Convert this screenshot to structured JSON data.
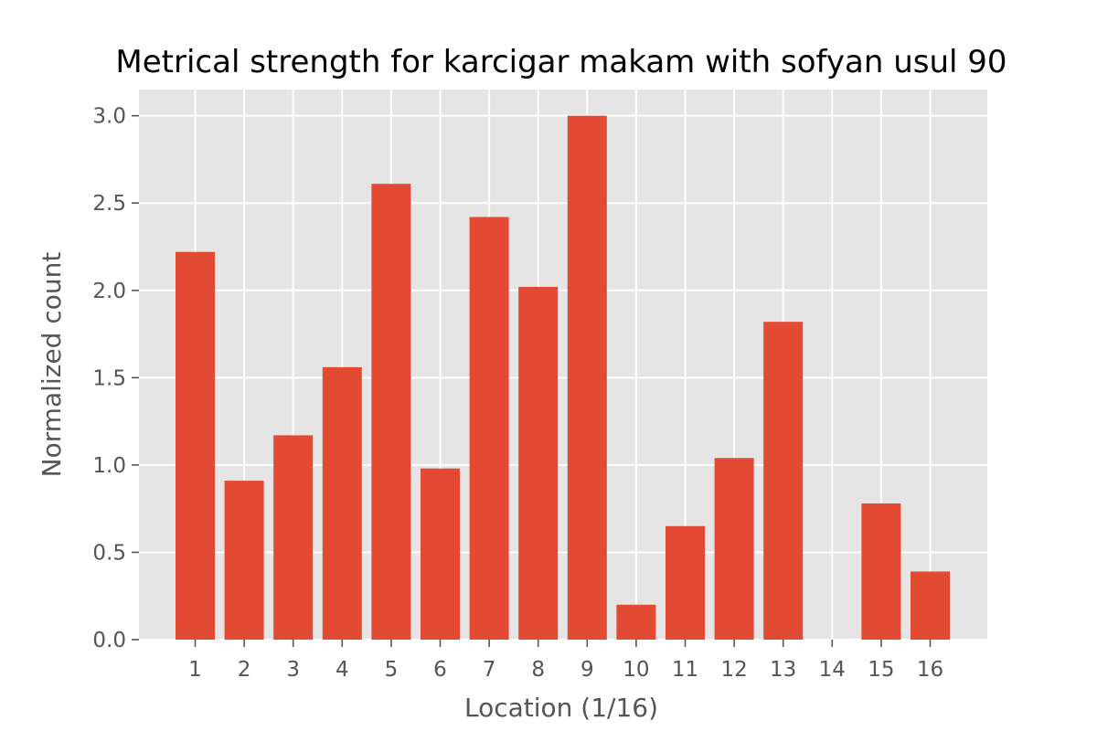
{
  "chart_data": {
    "type": "bar",
    "title": "Metrical strength for karcigar makam with sofyan usul 90",
    "xlabel": "Location (1/16)",
    "ylabel": "Normalized count",
    "categories": [
      "1",
      "2",
      "3",
      "4",
      "5",
      "6",
      "7",
      "8",
      "9",
      "10",
      "11",
      "12",
      "13",
      "14",
      "15",
      "16"
    ],
    "values": [
      2.22,
      0.91,
      1.17,
      1.56,
      2.61,
      0.98,
      2.42,
      2.02,
      3.0,
      0.2,
      0.65,
      1.04,
      1.82,
      0.0,
      0.78,
      0.39
    ],
    "ylim": [
      0,
      3.15
    ],
    "yticks": [
      "0.0",
      "0.5",
      "1.0",
      "1.5",
      "2.0",
      "2.5",
      "3.0"
    ],
    "grid": true,
    "background_color": "#E5E5E5",
    "bar_color": "#E24A33"
  }
}
